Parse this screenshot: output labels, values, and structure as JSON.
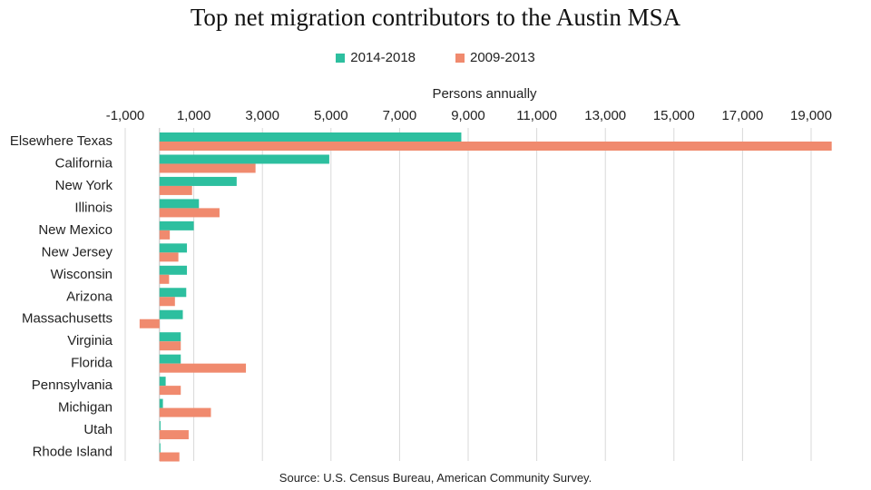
{
  "chart_data": {
    "type": "bar",
    "orientation": "horizontal",
    "title": "Top net migration contributors to the Austin MSA",
    "xlabel": "Persons annually",
    "source": "Source:  U.S. Census Bureau, American Community Survey.",
    "xlim": [
      -1000,
      20000
    ],
    "xticks": [
      -1000,
      1000,
      3000,
      5000,
      7000,
      9000,
      11000,
      13000,
      15000,
      17000,
      19000
    ],
    "xtick_labels": [
      "-1,000",
      "1,000",
      "3,000",
      "5,000",
      "7,000",
      "9,000",
      "11,000",
      "13,000",
      "15,000",
      "17,000",
      "19,000"
    ],
    "axis_position": "top",
    "grid": true,
    "legend_position": "top",
    "categories": [
      "Elsewhere Texas",
      "California",
      "New York",
      "Illinois",
      "New Mexico",
      "New Jersey",
      "Wisconsin",
      "Arizona",
      "Massachusetts",
      "Virginia",
      "Florida",
      "Pennsylvania",
      "Michigan",
      "Utah",
      "Rhode Island"
    ],
    "series": [
      {
        "name": "2014-2018",
        "color": "#2dbf9f",
        "values": [
          8800,
          4950,
          2250,
          1150,
          1000,
          800,
          800,
          780,
          680,
          620,
          620,
          180,
          100,
          30,
          20
        ]
      },
      {
        "name": "2009-2013",
        "color": "#f08a6e",
        "values": [
          19600,
          2800,
          950,
          1750,
          300,
          550,
          280,
          450,
          -580,
          620,
          2520,
          620,
          1500,
          850,
          580
        ]
      }
    ]
  }
}
